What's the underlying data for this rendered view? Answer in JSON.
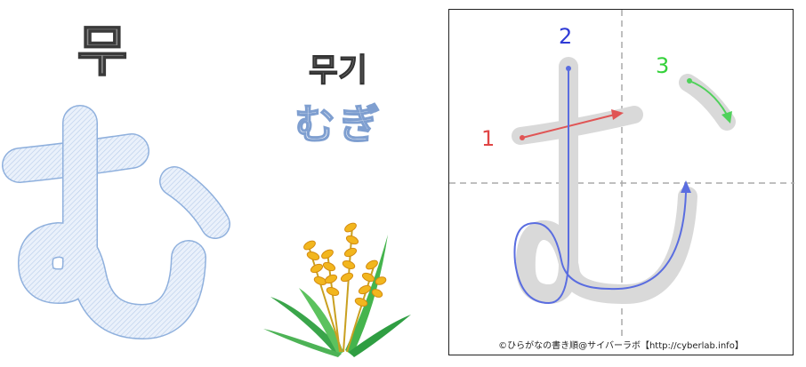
{
  "korean_reading": "무",
  "kana_big": "む",
  "word_korean": "무기",
  "word_kana": "むぎ",
  "stroke_numbers": [
    "1",
    "2",
    "3"
  ],
  "credit": "©ひらがなの書き順@サイバーラボ【http://cyberlab.info】",
  "colors": {
    "stroke1": "#e05555",
    "stroke2": "#5a6de0",
    "stroke3": "#4fd15a",
    "kana_outline": "#8fb0dd",
    "guide": "#b0b0b0"
  },
  "icons": [
    "wheat-illustration"
  ]
}
